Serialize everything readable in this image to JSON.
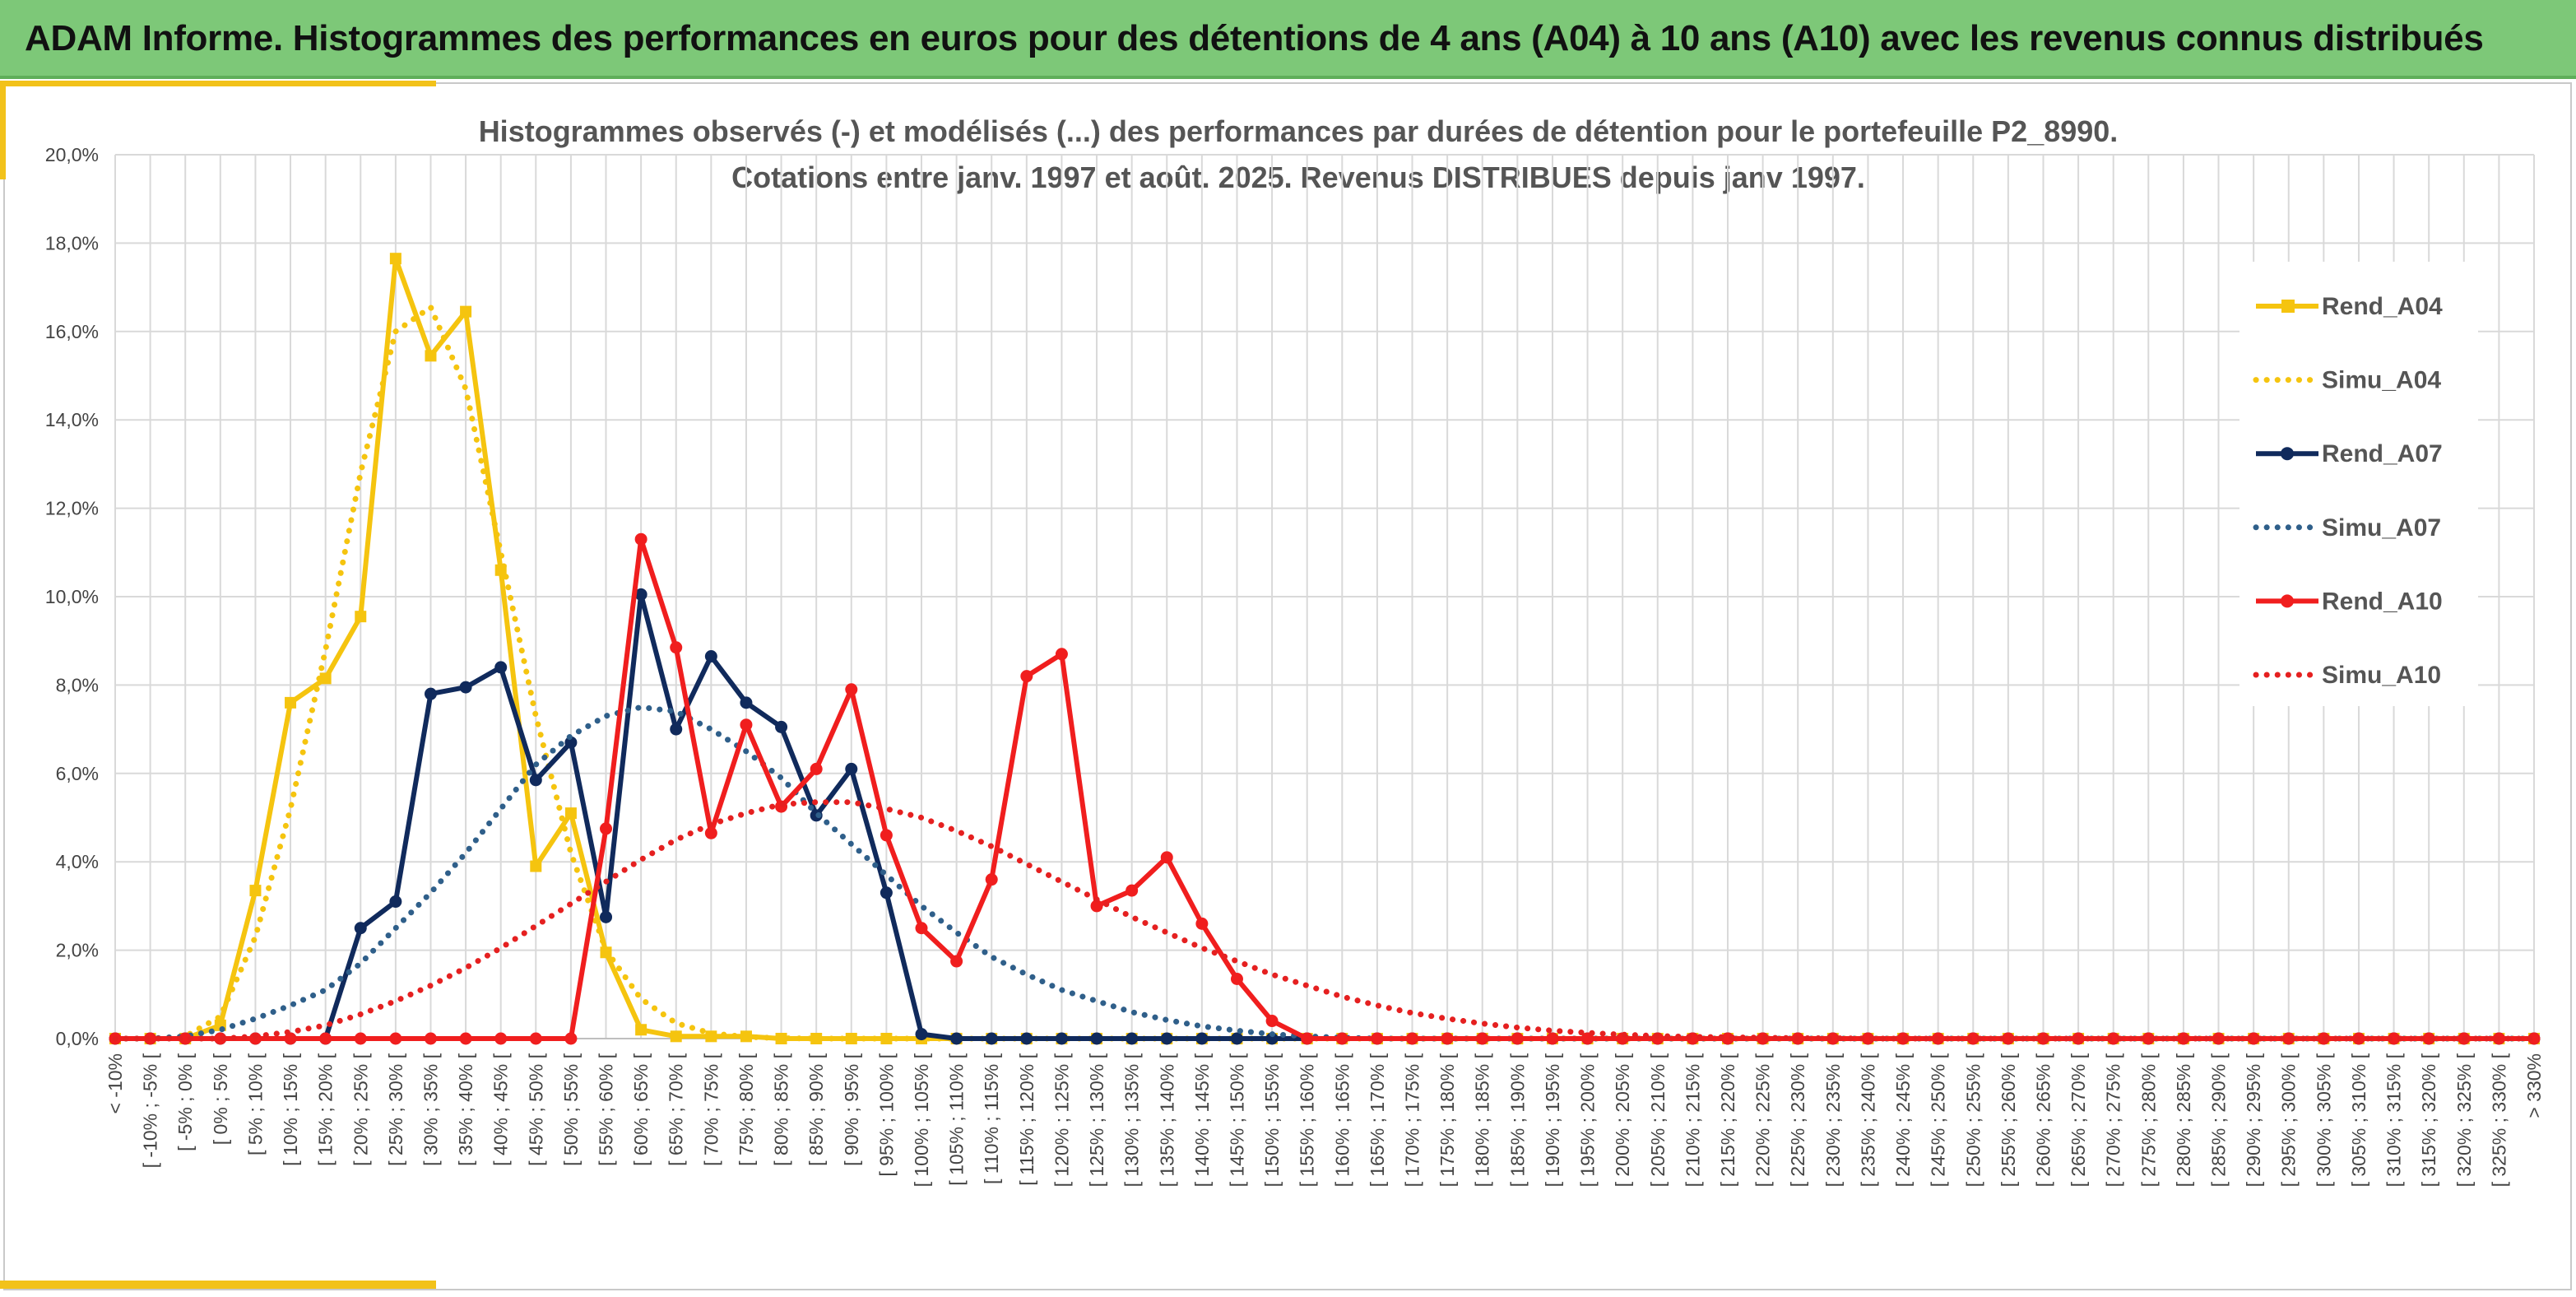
{
  "header": {
    "title": "ADAM Informe. Histogrammes des performances en euros pour des détentions de 4 ans (A04) à 10 ans (A10) avec les revenus connus distribués"
  },
  "chart_data": {
    "type": "line",
    "title_lines": [
      "Histogrammes observés (-) et modélisés (...) des performances par durées de détention pour le portefeuille P2_8990.",
      "Cotations entre janv. 1997 et août. 2025. Revenus DISTRIBUES depuis janv 1997."
    ],
    "xlabel": "",
    "ylabel": "",
    "ylim": [
      0,
      20
    ],
    "yticks": [
      "0,0%",
      "2,0%",
      "4,0%",
      "6,0%",
      "8,0%",
      "10,0%",
      "12,0%",
      "14,0%",
      "16,0%",
      "18,0%",
      "20,0%"
    ],
    "grid": true,
    "legend_position": "right",
    "categories": [
      "< -10%",
      "[ -10% ; -5% [",
      "[ -5% ; 0% [",
      "[ 0% ; 5% [",
      "[ 5% ; 10% [",
      "[ 10% ; 15% [",
      "[ 15% ; 20% [",
      "[ 20% ; 25% [",
      "[ 25% ; 30% [",
      "[ 30% ; 35% [",
      "[ 35% ; 40% [",
      "[ 40% ; 45% [",
      "[ 45% ; 50% [",
      "[ 50% ; 55% [",
      "[ 55% ; 60% [",
      "[ 60% ; 65% [",
      "[ 65% ; 70% [",
      "[ 70% ; 75% [",
      "[ 75% ; 80% [",
      "[ 80% ; 85% [",
      "[ 85% ; 90% [",
      "[ 90% ; 95% [",
      "[ 95% ; 100% [",
      "[ 100% ; 105% [",
      "[ 105% ; 110% [",
      "[ 110% ; 115% [",
      "[ 115% ; 120% [",
      "[ 120% ; 125% [",
      "[ 125% ; 130% [",
      "[ 130% ; 135% [",
      "[ 135% ; 140% [",
      "[ 140% ; 145% [",
      "[ 145% ; 150% [",
      "[ 150% ; 155% [",
      "[ 155% ; 160% [",
      "[ 160% ; 165% [",
      "[ 165% ; 170% [",
      "[ 170% ; 175% [",
      "[ 175% ; 180% [",
      "[ 180% ; 185% [",
      "[ 185% ; 190% [",
      "[ 190% ; 195% [",
      "[ 195% ; 200% [",
      "[ 200% ; 205% [",
      "[ 205% ; 210% [",
      "[ 210% ; 215% [",
      "[ 215% ; 220% [",
      "[ 220% ; 225% [",
      "[ 225% ; 230% [",
      "[ 230% ; 235% [",
      "[ 235% ; 240% [",
      "[ 240% ; 245% [",
      "[ 245% ; 250% [",
      "[ 250% ; 255% [",
      "[ 255% ; 260% [",
      "[ 260% ; 265% [",
      "[ 265% ; 270% [",
      "[ 270% ; 275% [",
      "[ 275% ; 280% [",
      "[ 280% ; 285% [",
      "[ 285% ; 290% [",
      "[ 290% ; 295% [",
      "[ 295% ; 300% [",
      "[ 300% ; 305% [",
      "[ 305% ; 310% [",
      "[ 310% ; 315% [",
      "[ 315% ; 320% [",
      "[ 320% ; 325% [",
      "[ 325% ; 330% [",
      "> 330%"
    ],
    "series": [
      {
        "name": "Rend_A04",
        "style": "solid",
        "marker": "square",
        "color": "#f5c40f",
        "values": [
          0,
          0,
          0,
          0.3,
          3.35,
          7.6,
          8.15,
          9.55,
          17.65,
          15.45,
          16.45,
          10.6,
          3.9,
          5.1,
          1.95,
          0.2,
          0.05,
          0.05,
          0.05,
          0,
          0,
          0,
          0,
          0,
          0,
          0,
          0,
          0,
          0,
          0,
          0,
          0,
          0,
          0,
          0,
          0,
          0,
          0,
          0,
          0,
          0,
          0,
          0,
          0,
          0,
          0,
          0,
          0,
          0,
          0,
          0,
          0,
          0,
          0,
          0,
          0,
          0,
          0,
          0,
          0,
          0,
          0,
          0,
          0,
          0,
          0,
          0,
          0,
          0,
          0
        ]
      },
      {
        "name": "Simu_A04",
        "style": "dotted",
        "color": "#f5c40f",
        "values": [
          0,
          0,
          0.05,
          0.5,
          2.3,
          5.2,
          8.8,
          12.8,
          16.0,
          16.55,
          14.7,
          11.0,
          7.3,
          4.2,
          2.0,
          0.9,
          0.35,
          0.12,
          0.04,
          0.01,
          0,
          0,
          0,
          0,
          0,
          0,
          0,
          0,
          0,
          0,
          0,
          0,
          0,
          0,
          0,
          0,
          0,
          0,
          0,
          0,
          0,
          0,
          0,
          0,
          0,
          0,
          0,
          0,
          0,
          0,
          0,
          0,
          0,
          0,
          0,
          0,
          0,
          0,
          0,
          0,
          0,
          0,
          0,
          0,
          0,
          0,
          0,
          0,
          0,
          0
        ]
      },
      {
        "name": "Rend_A07",
        "style": "solid",
        "marker": "circle",
        "color": "#102a5c",
        "values": [
          0,
          0,
          0,
          0,
          0,
          0,
          0,
          2.5,
          3.1,
          7.8,
          7.95,
          8.4,
          5.85,
          6.7,
          2.75,
          10.05,
          7.0,
          8.65,
          7.6,
          7.05,
          5.05,
          6.1,
          3.3,
          0.1,
          0,
          0,
          0,
          0,
          0,
          0,
          0,
          0,
          0,
          0,
          0,
          0,
          0,
          0,
          0,
          0,
          0,
          0,
          0,
          0,
          0,
          0,
          0,
          0,
          0,
          0,
          0,
          0,
          0,
          0,
          0,
          0,
          0,
          0,
          0,
          0,
          0,
          0,
          0,
          0,
          0,
          0,
          0,
          0,
          0,
          0
        ]
      },
      {
        "name": "Simu_A07",
        "style": "dotted",
        "color": "#2f5f8a",
        "values": [
          0,
          0,
          0.05,
          0.2,
          0.45,
          0.75,
          1.1,
          1.7,
          2.5,
          3.3,
          4.2,
          5.2,
          6.2,
          6.85,
          7.3,
          7.5,
          7.4,
          7.0,
          6.5,
          5.9,
          5.1,
          4.4,
          3.7,
          3.0,
          2.4,
          1.85,
          1.45,
          1.1,
          0.85,
          0.6,
          0.42,
          0.28,
          0.18,
          0.1,
          0.05,
          0.02,
          0,
          0,
          0,
          0,
          0,
          0,
          0,
          0,
          0,
          0,
          0,
          0,
          0,
          0,
          0,
          0,
          0,
          0,
          0,
          0,
          0,
          0,
          0,
          0,
          0,
          0,
          0,
          0,
          0,
          0,
          0,
          0,
          0,
          0
        ]
      },
      {
        "name": "Rend_A10",
        "style": "solid",
        "marker": "circle",
        "color": "#f01e1e",
        "values": [
          0,
          0,
          0,
          0,
          0,
          0,
          0,
          0,
          0,
          0,
          0,
          0,
          0,
          0,
          4.75,
          11.3,
          8.85,
          4.65,
          7.1,
          5.25,
          6.1,
          7.9,
          4.6,
          2.5,
          1.75,
          3.6,
          8.2,
          8.7,
          3.0,
          3.35,
          4.1,
          2.6,
          1.35,
          0.4,
          0,
          0,
          0,
          0,
          0,
          0,
          0,
          0,
          0,
          0,
          0,
          0,
          0,
          0,
          0,
          0,
          0,
          0,
          0,
          0,
          0,
          0,
          0,
          0,
          0,
          0,
          0,
          0,
          0,
          0,
          0,
          0,
          0,
          0,
          0,
          0
        ]
      },
      {
        "name": "Simu_A10",
        "style": "dotted",
        "color": "#e52020",
        "values": [
          0,
          0,
          0,
          0,
          0.05,
          0.15,
          0.3,
          0.55,
          0.85,
          1.2,
          1.6,
          2.05,
          2.55,
          3.05,
          3.55,
          4.05,
          4.5,
          4.85,
          5.1,
          5.3,
          5.35,
          5.35,
          5.2,
          5.0,
          4.7,
          4.35,
          3.95,
          3.55,
          3.15,
          2.75,
          2.4,
          2.05,
          1.75,
          1.45,
          1.2,
          0.95,
          0.75,
          0.58,
          0.45,
          0.34,
          0.25,
          0.18,
          0.13,
          0.09,
          0.06,
          0.04,
          0.03,
          0.02,
          0.01,
          0.01,
          0,
          0,
          0,
          0,
          0,
          0,
          0,
          0,
          0,
          0,
          0,
          0,
          0,
          0,
          0,
          0,
          0,
          0,
          0,
          0
        ]
      }
    ]
  }
}
